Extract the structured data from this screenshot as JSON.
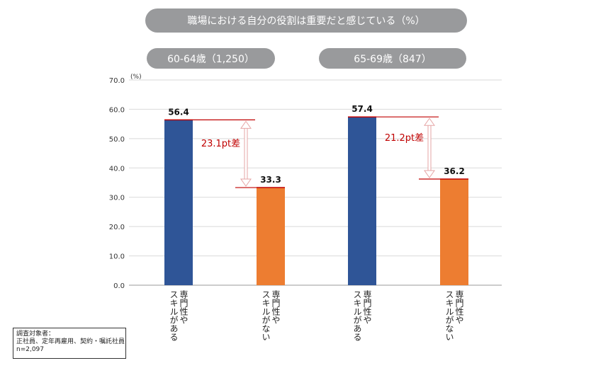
{
  "chart_data": {
    "type": "bar",
    "title": "職場における自分の役割は重要だと感じている（%）",
    "unit_label": "(%)",
    "ylim": [
      0,
      70
    ],
    "y_ticks": [
      "0.0",
      "10.0",
      "20.0",
      "30.0",
      "40.0",
      "50.0",
      "60.0",
      "70.0"
    ],
    "grid": true,
    "groups": [
      {
        "label": "60-64歳（1,250）",
        "bars": [
          {
            "category": "専門性やスキルがある",
            "value": 56.4,
            "value_label": "56.4",
            "color": "#2f5597"
          },
          {
            "category": "専門性やスキルがない",
            "value": 33.3,
            "value_label": "33.3",
            "color": "#ed7d31"
          }
        ],
        "difference_label": "23.1pt差"
      },
      {
        "label": "65-69歳（847）",
        "bars": [
          {
            "category": "専門性やスキルがある",
            "value": 57.4,
            "value_label": "57.4",
            "color": "#2f5597"
          },
          {
            "category": "専門性やスキルがない",
            "value": 36.2,
            "value_label": "36.2",
            "color": "#ed7d31"
          }
        ],
        "difference_label": "21.2pt差"
      }
    ],
    "category_labels": [
      {
        "line1": "専門性や",
        "line2": "スキルがある"
      },
      {
        "line1": "専門性や",
        "line2": "スキルがない"
      },
      {
        "line1": "専門性や",
        "line2": "スキルがある"
      },
      {
        "line1": "専門性や",
        "line2": "スキルがない"
      }
    ],
    "difference_color": "#c00000"
  },
  "note": {
    "line1": "調査対象者：",
    "line2": "正社員、定年再雇用、契約・嘱託社員",
    "line3": "n=2,097"
  }
}
